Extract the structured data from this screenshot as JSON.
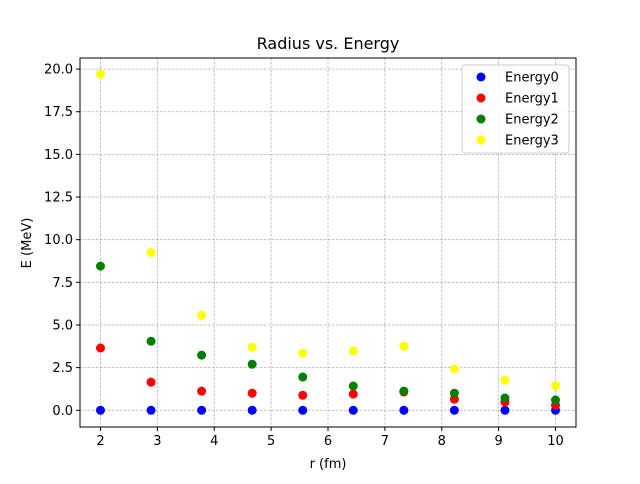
{
  "chart_data": {
    "type": "scatter",
    "title": "Radius vs. Energy",
    "xlabel": "r (fm)",
    "ylabel": "E (MeV)",
    "xlim": [
      1.64,
      10.36
    ],
    "ylim": [
      -0.98,
      20.65
    ],
    "xticks": [
      2,
      3,
      4,
      5,
      6,
      7,
      8,
      9,
      10
    ],
    "xtick_labels": [
      "2",
      "3",
      "4",
      "5",
      "6",
      "7",
      "8",
      "9",
      "10"
    ],
    "yticks": [
      0,
      2.5,
      5,
      7.5,
      10,
      12.5,
      15,
      17.5,
      20
    ],
    "ytick_labels": [
      "0.0",
      "2.5",
      "5.0",
      "7.5",
      "10.0",
      "12.5",
      "15.0",
      "17.5",
      "20.0"
    ],
    "grid": true,
    "legend_position": "top-right",
    "x": [
      2.0,
      2.889,
      3.778,
      4.667,
      5.556,
      6.444,
      7.333,
      8.222,
      9.111,
      10.0
    ],
    "series": [
      {
        "name": "Energy0",
        "color": "#0000ff",
        "values": [
          0.0,
          0.0,
          0.0,
          0.0,
          0.0,
          0.0,
          0.0,
          0.0,
          0.0,
          0.0
        ]
      },
      {
        "name": "Energy1",
        "color": "#ff0000",
        "values": [
          3.65,
          1.65,
          1.12,
          1.0,
          0.88,
          0.95,
          1.07,
          0.65,
          0.48,
          0.3
        ]
      },
      {
        "name": "Energy2",
        "color": "#008000",
        "values": [
          8.45,
          4.05,
          3.23,
          2.7,
          1.95,
          1.42,
          1.12,
          1.0,
          0.72,
          0.6
        ]
      },
      {
        "name": "Energy3",
        "color": "#ffff00",
        "values": [
          19.7,
          9.25,
          5.57,
          3.7,
          3.35,
          3.47,
          3.75,
          2.43,
          1.77,
          1.45
        ]
      }
    ]
  }
}
